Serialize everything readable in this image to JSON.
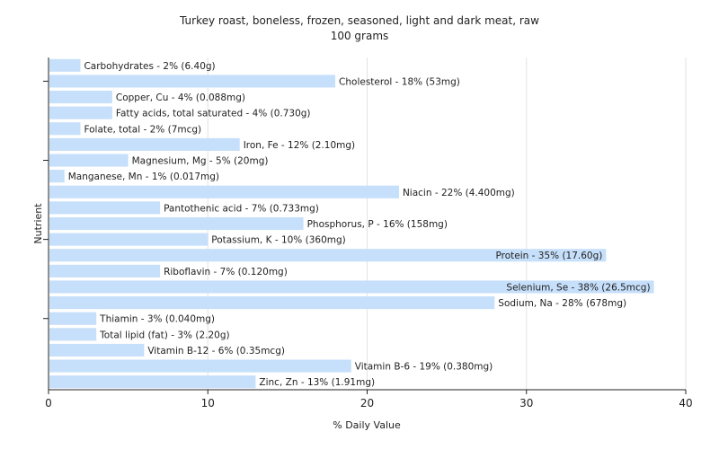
{
  "chart_data": {
    "type": "bar",
    "orientation": "horizontal",
    "title": "Turkey roast, boneless, frozen, seasoned, light and dark meat, raw",
    "subtitle": "100 grams",
    "xlabel": "% Daily Value",
    "ylabel": "Nutrient",
    "xlim": [
      0,
      40
    ],
    "xticks": [
      0,
      10,
      20,
      30,
      40
    ],
    "grid": true,
    "bar_color": "#c6dffa",
    "bars": [
      {
        "name": "Carbohydrates",
        "value": 2,
        "label": "Carbohydrates - 2% (6.40g)"
      },
      {
        "name": "Cholesterol",
        "value": 18,
        "label": "Cholesterol - 18% (53mg)"
      },
      {
        "name": "Copper, Cu",
        "value": 4,
        "label": "Copper, Cu - 4% (0.088mg)"
      },
      {
        "name": "Fatty acids, total saturated",
        "value": 4,
        "label": "Fatty acids, total saturated - 4% (0.730g)"
      },
      {
        "name": "Folate, total",
        "value": 2,
        "label": "Folate, total - 2% (7mcg)"
      },
      {
        "name": "Iron, Fe",
        "value": 12,
        "label": "Iron, Fe - 12% (2.10mg)"
      },
      {
        "name": "Magnesium, Mg",
        "value": 5,
        "label": "Magnesium, Mg - 5% (20mg)"
      },
      {
        "name": "Manganese, Mn",
        "value": 1,
        "label": "Manganese, Mn - 1% (0.017mg)"
      },
      {
        "name": "Niacin",
        "value": 22,
        "label": "Niacin - 22% (4.400mg)"
      },
      {
        "name": "Pantothenic acid",
        "value": 7,
        "label": "Pantothenic acid - 7% (0.733mg)"
      },
      {
        "name": "Phosphorus, P",
        "value": 16,
        "label": "Phosphorus, P - 16% (158mg)"
      },
      {
        "name": "Potassium, K",
        "value": 10,
        "label": "Potassium, K - 10% (360mg)"
      },
      {
        "name": "Protein",
        "value": 35,
        "label": "Protein - 35% (17.60g)"
      },
      {
        "name": "Riboflavin",
        "value": 7,
        "label": "Riboflavin - 7% (0.120mg)"
      },
      {
        "name": "Selenium, Se",
        "value": 38,
        "label": "Selenium, Se - 38% (26.5mcg)"
      },
      {
        "name": "Sodium, Na",
        "value": 28,
        "label": "Sodium, Na - 28% (678mg)"
      },
      {
        "name": "Thiamin",
        "value": 3,
        "label": "Thiamin - 3% (0.040mg)"
      },
      {
        "name": "Total lipid (fat)",
        "value": 3,
        "label": "Total lipid (fat) - 3% (2.20g)"
      },
      {
        "name": "Vitamin B-12",
        "value": 6,
        "label": "Vitamin B-12 - 6% (0.35mcg)"
      },
      {
        "name": "Vitamin B-6",
        "value": 19,
        "label": "Vitamin B-6 - 19% (0.380mg)"
      },
      {
        "name": "Zinc, Zn",
        "value": 13,
        "label": "Zinc, Zn - 13% (1.91mg)"
      }
    ]
  }
}
